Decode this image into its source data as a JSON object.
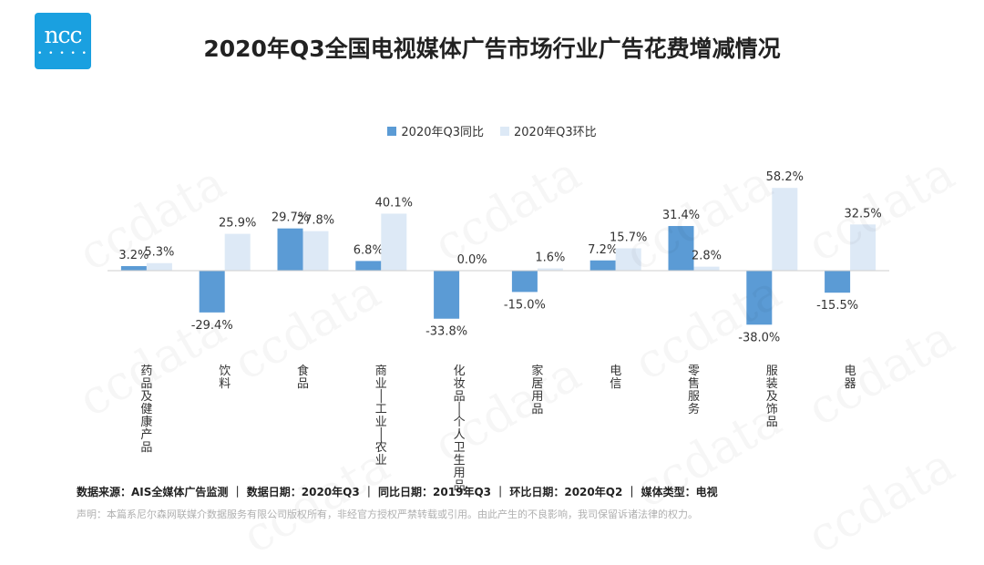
{
  "logo": {
    "text": "ncc",
    "dots": "• • • • •"
  },
  "title": "2020年Q3全国电视媒体广告市场行业广告花费增减情况",
  "watermark": "ccdata",
  "colors": {
    "yoy": "#5b9bd5",
    "qoq": "#dde9f6",
    "logo": "#1aa0e0"
  },
  "chart_data": {
    "type": "bar",
    "categories": [
      "药品及健康产品",
      "饮料",
      "食品",
      "商业/工业/农业",
      "化妆品/个人卫生用品",
      "家居用品",
      "电信",
      "零售服务",
      "服装及饰品",
      "电器"
    ],
    "series": [
      {
        "name": "2020年Q3同比",
        "values": [
          3.2,
          -29.4,
          29.7,
          6.8,
          -33.8,
          -15.0,
          7.2,
          31.4,
          -38.0,
          -15.5
        ],
        "labels": [
          "3.2%",
          "-29.4%",
          "29.7%",
          "6.8%",
          "-33.8%",
          "-15.0%",
          "7.2%",
          "31.4%",
          "-38.0%",
          "-15.5%"
        ]
      },
      {
        "name": "2020年Q3环比",
        "values": [
          5.3,
          25.9,
          27.8,
          40.1,
          0.0,
          1.6,
          15.7,
          2.8,
          58.2,
          32.5
        ],
        "labels": [
          "5.3%",
          "25.9%",
          "27.8%",
          "40.1%",
          "0.0%",
          "1.6%",
          "15.7%",
          "2.8%",
          "58.2%",
          "32.5%"
        ]
      }
    ],
    "ylim": [
      -40,
      60
    ],
    "grid": false,
    "legend_position": "top-center"
  },
  "footer": {
    "source": "数据来源：AIS全媒体广告监测 ｜ 数据日期：2020年Q3 ｜ 同比日期：2019年Q3 ｜ 环比日期：2020年Q2 ｜ 媒体类型：电视",
    "disclaimer": "声明：本篇系尼尔森网联媒介数据服务有限公司版权所有，非经官方授权严禁转载或引用。由此产生的不良影响，我司保留诉诸法律的权力。"
  }
}
